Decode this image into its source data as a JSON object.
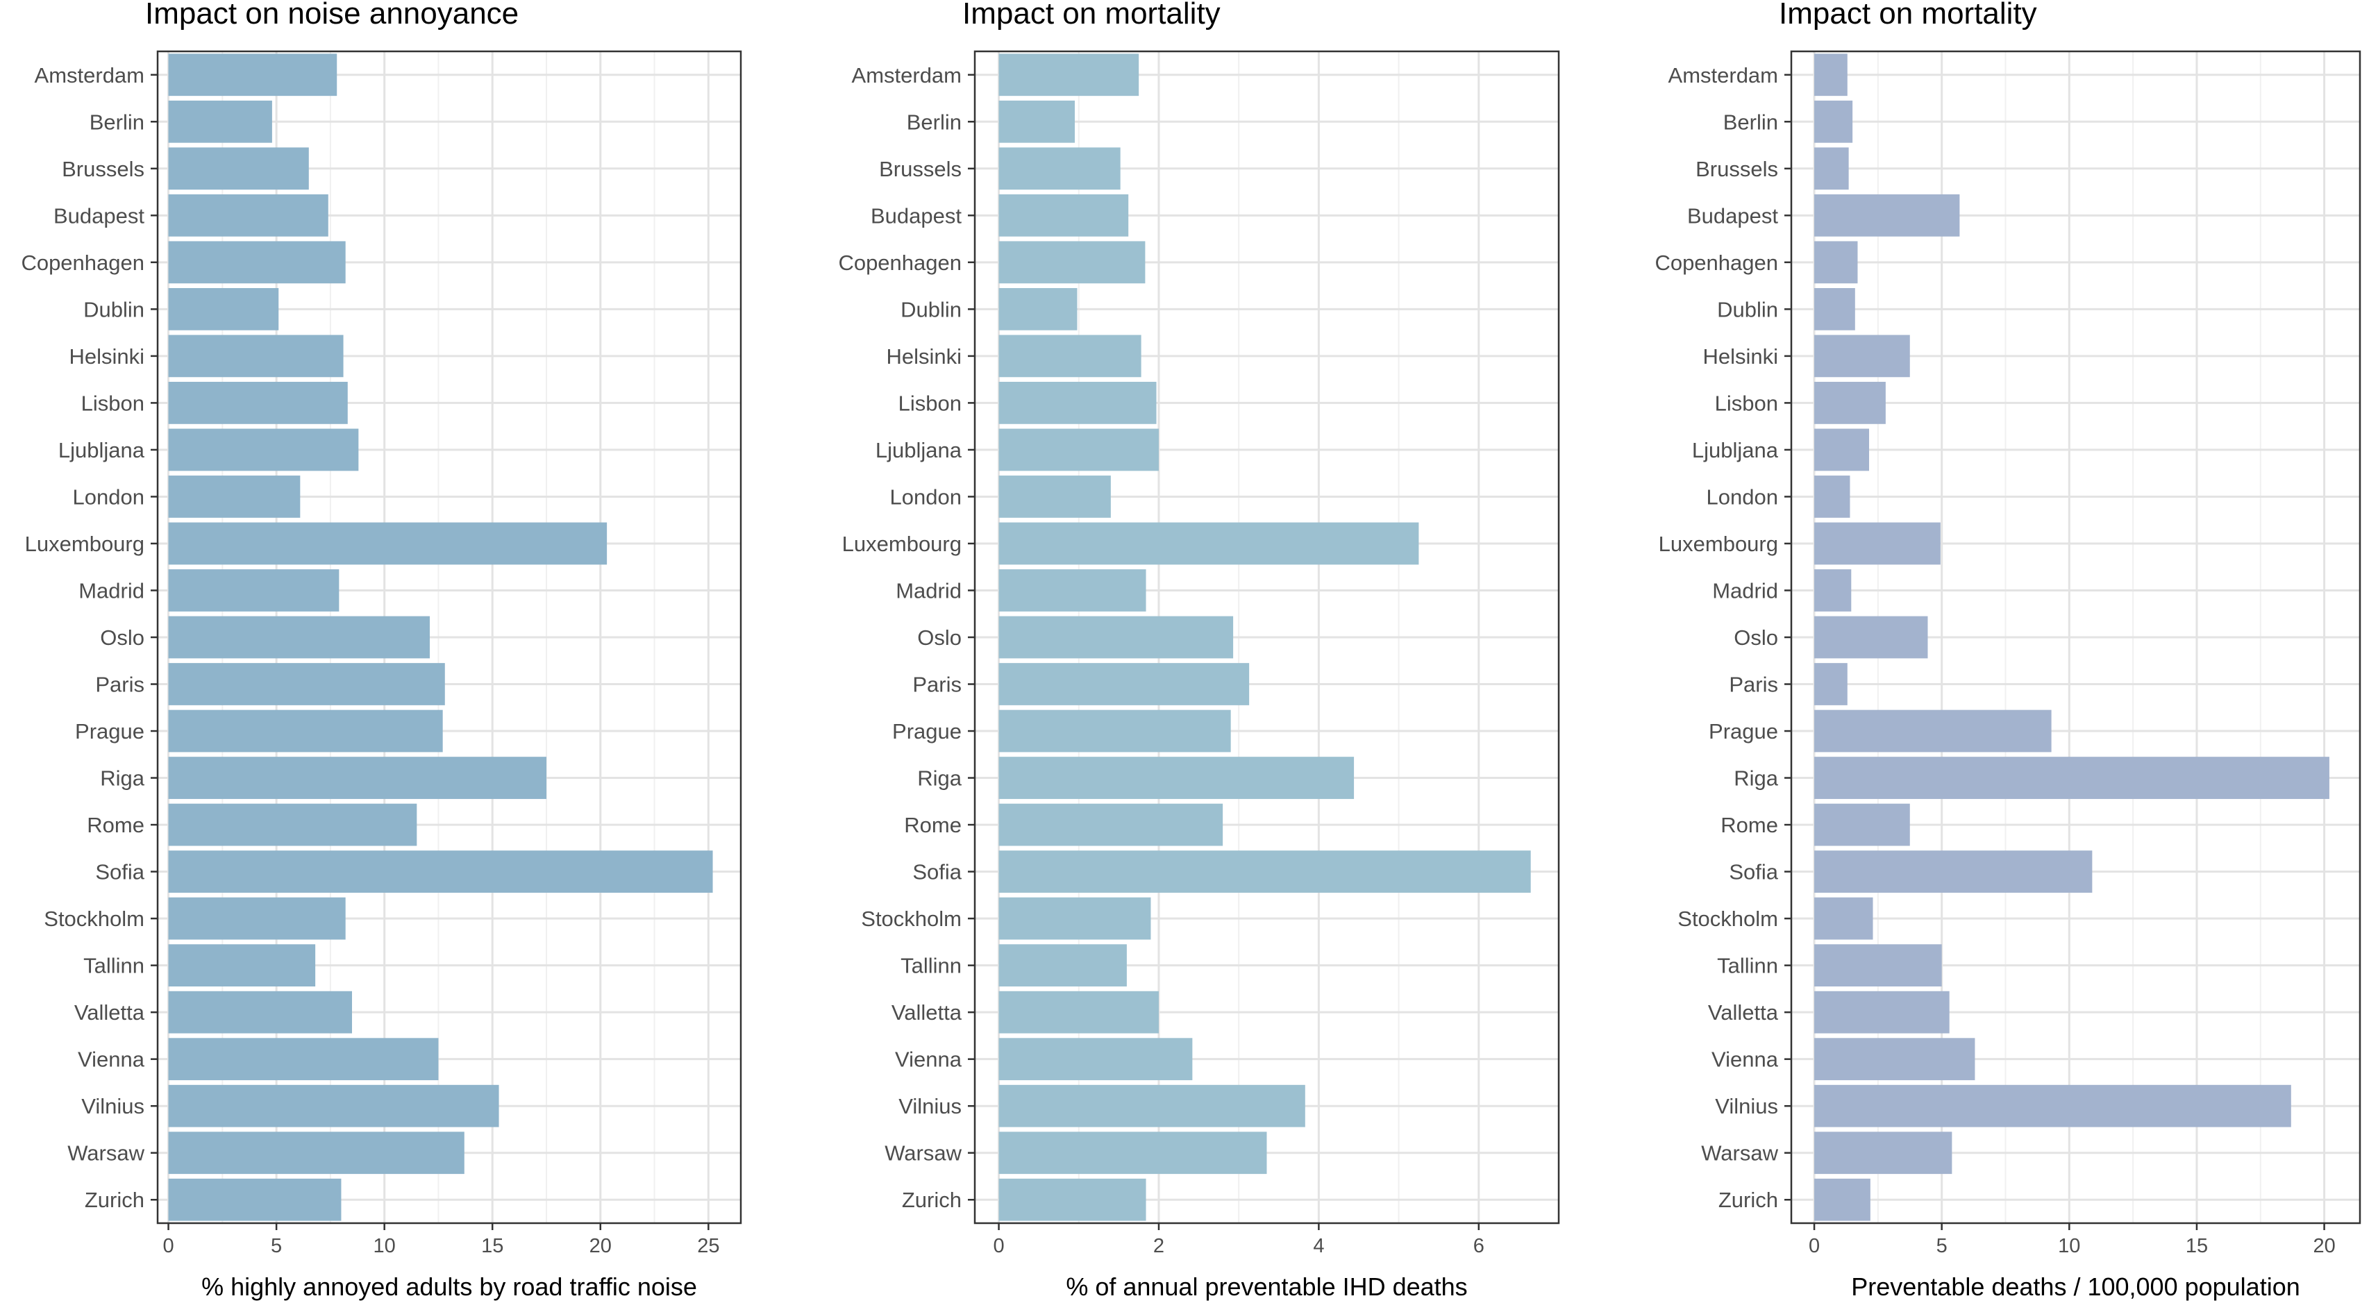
{
  "chart_data": [
    {
      "type": "bar",
      "orientation": "horizontal",
      "title": "Impact on noise annoyance",
      "xlabel": "% highly annoyed adults by road traffic noise",
      "ylabel": "",
      "color": "#8fb4cb",
      "xlim": [
        -0.5,
        26.5
      ],
      "xticks": [
        0,
        5,
        10,
        15,
        20,
        25
      ],
      "grid": true,
      "categories": [
        "Amsterdam",
        "Berlin",
        "Brussels",
        "Budapest",
        "Copenhagen",
        "Dublin",
        "Helsinki",
        "Lisbon",
        "Ljubljana",
        "London",
        "Luxembourg",
        "Madrid",
        "Oslo",
        "Paris",
        "Prague",
        "Riga",
        "Rome",
        "Sofia",
        "Stockholm",
        "Tallinn",
        "Valletta",
        "Vienna",
        "Vilnius",
        "Warsaw",
        "Zurich"
      ],
      "values": [
        7.8,
        4.8,
        6.5,
        7.4,
        8.2,
        5.1,
        8.1,
        8.3,
        8.8,
        6.1,
        20.3,
        7.9,
        12.1,
        12.8,
        12.7,
        17.5,
        11.5,
        25.2,
        8.2,
        6.8,
        8.5,
        12.5,
        15.3,
        13.7,
        8.0
      ]
    },
    {
      "type": "bar",
      "orientation": "horizontal",
      "title": "Impact on mortality",
      "xlabel": "% of annual preventable IHD deaths",
      "ylabel": "",
      "color": "#9cc0d0",
      "xlim": [
        -0.3,
        7.0
      ],
      "xticks": [
        0,
        2,
        4,
        6
      ],
      "grid": true,
      "categories": [
        "Amsterdam",
        "Berlin",
        "Brussels",
        "Budapest",
        "Copenhagen",
        "Dublin",
        "Helsinki",
        "Lisbon",
        "Ljubljana",
        "London",
        "Luxembourg",
        "Madrid",
        "Oslo",
        "Paris",
        "Prague",
        "Riga",
        "Rome",
        "Sofia",
        "Stockholm",
        "Tallinn",
        "Valletta",
        "Vienna",
        "Vilnius",
        "Warsaw",
        "Zurich"
      ],
      "values": [
        1.75,
        0.95,
        1.52,
        1.62,
        1.83,
        0.98,
        1.78,
        1.97,
        2.0,
        1.4,
        5.25,
        1.84,
        2.93,
        3.13,
        2.9,
        4.44,
        2.8,
        6.65,
        1.9,
        1.6,
        2.0,
        2.42,
        3.83,
        3.35,
        1.84
      ]
    },
    {
      "type": "bar",
      "orientation": "horizontal",
      "title": "Impact on mortality",
      "xlabel": "Preventable deaths / 100,000 population",
      "ylabel": "",
      "color": "#a3b3ce",
      "xlim": [
        -0.9,
        21.4
      ],
      "xticks": [
        0,
        5,
        10,
        15,
        20
      ],
      "grid": true,
      "categories": [
        "Amsterdam",
        "Berlin",
        "Brussels",
        "Budapest",
        "Copenhagen",
        "Dublin",
        "Helsinki",
        "Lisbon",
        "Ljubljana",
        "London",
        "Luxembourg",
        "Madrid",
        "Oslo",
        "Paris",
        "Prague",
        "Riga",
        "Rome",
        "Sofia",
        "Stockholm",
        "Tallinn",
        "Valletta",
        "Vienna",
        "Vilnius",
        "Warsaw",
        "Zurich"
      ],
      "values": [
        1.3,
        1.5,
        1.35,
        5.7,
        1.7,
        1.6,
        3.75,
        2.8,
        2.15,
        1.4,
        4.95,
        1.45,
        4.45,
        1.3,
        9.3,
        20.2,
        3.75,
        10.9,
        2.3,
        5.0,
        5.3,
        6.3,
        18.7,
        5.4,
        2.2
      ]
    }
  ]
}
